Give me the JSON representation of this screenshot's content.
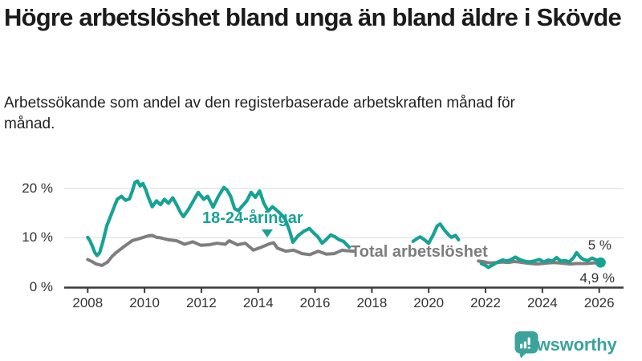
{
  "header": {
    "title": "Högre arbetslöshet bland unga än bland äldre i Skövde",
    "subtitle": "Arbetssökande som andel av den registerbaserade arbetskraften månad för månad."
  },
  "chart_data": {
    "type": "line",
    "title": "Högre arbetslöshet bland unga än bland äldre i Skövde",
    "xlabel": "",
    "ylabel": "",
    "grid": "horizontal",
    "x_axis": {
      "ticks": [
        2008,
        2010,
        2012,
        2014,
        2016,
        2018,
        2020,
        2022,
        2024,
        2026
      ],
      "min": 2007.2,
      "max": 2026.9
    },
    "y_axis": {
      "ticks": [
        {
          "v": 0,
          "label": "0 %"
        },
        {
          "v": 10,
          "label": "10 %"
        },
        {
          "v": 20,
          "label": "20 %"
        }
      ],
      "min": 0,
      "max": 23
    },
    "series": [
      {
        "name": "18-24-åringar",
        "color": "#17a295",
        "end_label": "5 %",
        "end_dot": true,
        "segments": [
          [
            [
              2008.0,
              10.1
            ],
            [
              2008.08,
              9.4
            ],
            [
              2008.17,
              8.2
            ],
            [
              2008.25,
              7.0
            ],
            [
              2008.33,
              6.4
            ],
            [
              2008.42,
              7.0
            ],
            [
              2008.52,
              8.9
            ],
            [
              2008.67,
              12.4
            ],
            [
              2008.8,
              14.3
            ],
            [
              2008.95,
              16.5
            ],
            [
              2009.04,
              17.8
            ],
            [
              2009.19,
              18.4
            ],
            [
              2009.33,
              17.6
            ],
            [
              2009.47,
              17.9
            ],
            [
              2009.56,
              19.3
            ],
            [
              2009.66,
              21.2
            ],
            [
              2009.75,
              21.5
            ],
            [
              2009.85,
              20.5
            ],
            [
              2009.94,
              21.0
            ],
            [
              2010.04,
              19.8
            ],
            [
              2010.13,
              18.3
            ],
            [
              2010.27,
              16.3
            ],
            [
              2010.42,
              17.5
            ],
            [
              2010.56,
              16.7
            ],
            [
              2010.7,
              17.8
            ],
            [
              2010.84,
              17.0
            ],
            [
              2010.99,
              18.1
            ],
            [
              2011.13,
              16.7
            ],
            [
              2011.27,
              15.1
            ],
            [
              2011.37,
              14.3
            ],
            [
              2011.55,
              15.8
            ],
            [
              2011.7,
              17.3
            ],
            [
              2011.89,
              19.2
            ],
            [
              2012.08,
              17.8
            ],
            [
              2012.22,
              18.4
            ],
            [
              2012.41,
              16.2
            ],
            [
              2012.6,
              18.4
            ],
            [
              2012.79,
              20.2
            ],
            [
              2012.9,
              19.7
            ],
            [
              2013.03,
              18.4
            ],
            [
              2013.17,
              15.9
            ],
            [
              2013.3,
              15.5
            ],
            [
              2013.45,
              16.5
            ],
            [
              2013.6,
              17.5
            ],
            [
              2013.75,
              19.2
            ],
            [
              2013.9,
              18.2
            ],
            [
              2014.05,
              19.5
            ],
            [
              2014.2,
              17.0
            ],
            [
              2014.35,
              15.4
            ],
            [
              2014.5,
              16.3
            ],
            [
              2014.65,
              15.6
            ],
            [
              2014.8,
              14.8
            ],
            [
              2014.95,
              13.8
            ],
            [
              2015.1,
              11.5
            ],
            [
              2015.22,
              9.1
            ],
            [
              2015.4,
              10.4
            ],
            [
              2015.6,
              11.3
            ],
            [
              2015.8,
              11.9
            ],
            [
              2015.95,
              11.0
            ],
            [
              2016.1,
              10.2
            ],
            [
              2016.25,
              8.9
            ],
            [
              2016.4,
              9.7
            ],
            [
              2016.55,
              10.6
            ],
            [
              2016.7,
              10.2
            ],
            [
              2016.85,
              9.6
            ],
            [
              2017.0,
              9.3
            ],
            [
              2017.1,
              8.7
            ],
            [
              2017.2,
              8.1
            ]
          ],
          [
            [
              2019.45,
              9.3
            ],
            [
              2019.6,
              9.9
            ],
            [
              2019.7,
              10.2
            ],
            [
              2019.85,
              9.6
            ],
            [
              2020.0,
              8.9
            ],
            [
              2020.15,
              10.5
            ],
            [
              2020.3,
              12.4
            ],
            [
              2020.4,
              12.8
            ],
            [
              2020.55,
              11.6
            ],
            [
              2020.7,
              10.6
            ],
            [
              2020.8,
              10.1
            ],
            [
              2020.94,
              10.5
            ],
            [
              2021.05,
              9.6
            ]
          ],
          [
            [
              2021.85,
              4.8
            ],
            [
              2022.0,
              4.4
            ],
            [
              2022.1,
              4.0
            ],
            [
              2022.25,
              4.5
            ],
            [
              2022.4,
              5.0
            ],
            [
              2022.6,
              5.5
            ],
            [
              2022.75,
              5.3
            ],
            [
              2022.9,
              5.6
            ],
            [
              2023.05,
              6.1
            ],
            [
              2023.2,
              5.6
            ],
            [
              2023.35,
              5.3
            ],
            [
              2023.55,
              5.1
            ],
            [
              2023.7,
              5.3
            ],
            [
              2023.9,
              5.6
            ],
            [
              2024.05,
              5.1
            ],
            [
              2024.2,
              5.5
            ],
            [
              2024.35,
              5.3
            ],
            [
              2024.5,
              6.0
            ],
            [
              2024.65,
              5.3
            ],
            [
              2024.8,
              5.4
            ],
            [
              2024.95,
              5.1
            ],
            [
              2025.1,
              6.0
            ],
            [
              2025.2,
              7.0
            ],
            [
              2025.35,
              6.0
            ],
            [
              2025.45,
              5.6
            ],
            [
              2025.6,
              5.4
            ],
            [
              2025.75,
              5.9
            ],
            [
              2025.9,
              5.5
            ],
            [
              2026.05,
              5.0
            ]
          ]
        ]
      },
      {
        "name": "Total arbetslöshet",
        "color": "#7e7e7e",
        "end_label": "4,9 %",
        "end_dot": false,
        "segments": [
          [
            [
              2008.0,
              5.6
            ],
            [
              2008.15,
              5.2
            ],
            [
              2008.3,
              4.7
            ],
            [
              2008.5,
              4.4
            ],
            [
              2008.7,
              5.1
            ],
            [
              2008.85,
              6.2
            ],
            [
              2009.0,
              7.0
            ],
            [
              2009.27,
              8.2
            ],
            [
              2009.56,
              9.4
            ],
            [
              2009.85,
              9.9
            ],
            [
              2010.13,
              10.4
            ],
            [
              2010.27,
              10.5
            ],
            [
              2010.42,
              10.1
            ],
            [
              2010.56,
              10.0
            ],
            [
              2010.84,
              9.6
            ],
            [
              2011.13,
              9.4
            ],
            [
              2011.41,
              8.7
            ],
            [
              2011.7,
              9.2
            ],
            [
              2011.98,
              8.5
            ],
            [
              2012.27,
              8.6
            ],
            [
              2012.55,
              8.9
            ],
            [
              2012.84,
              8.7
            ],
            [
              2012.98,
              9.4
            ],
            [
              2013.26,
              8.6
            ],
            [
              2013.55,
              8.9
            ],
            [
              2013.83,
              7.5
            ],
            [
              2014.11,
              8.1
            ],
            [
              2014.4,
              8.8
            ],
            [
              2014.54,
              9.0
            ],
            [
              2014.68,
              7.9
            ],
            [
              2014.97,
              7.3
            ],
            [
              2015.25,
              7.5
            ],
            [
              2015.54,
              6.8
            ],
            [
              2015.82,
              6.6
            ],
            [
              2016.11,
              7.3
            ],
            [
              2016.39,
              6.7
            ],
            [
              2016.68,
              6.8
            ],
            [
              2016.96,
              7.5
            ],
            [
              2017.1,
              7.4
            ],
            [
              2017.35,
              7.3
            ]
          ],
          [
            [
              2021.75,
              5.3
            ],
            [
              2021.9,
              5.2
            ],
            [
              2022.05,
              5.0
            ],
            [
              2022.2,
              4.9
            ],
            [
              2022.4,
              5.0
            ],
            [
              2022.6,
              5.1
            ],
            [
              2022.8,
              5.0
            ],
            [
              2023.0,
              5.2
            ],
            [
              2023.2,
              5.1
            ],
            [
              2023.4,
              4.9
            ],
            [
              2023.6,
              4.8
            ],
            [
              2023.8,
              4.7
            ],
            [
              2024.0,
              4.8
            ],
            [
              2024.2,
              4.9
            ],
            [
              2024.4,
              5.0
            ],
            [
              2024.6,
              4.9
            ],
            [
              2024.8,
              4.8
            ],
            [
              2025.0,
              4.7
            ],
            [
              2025.2,
              4.8
            ],
            [
              2025.4,
              4.8
            ],
            [
              2025.6,
              4.8
            ],
            [
              2025.8,
              4.9
            ],
            [
              2026.0,
              4.9
            ]
          ]
        ]
      }
    ]
  },
  "annotations": {
    "young_series_label": "18-24-åringar",
    "total_series_label": "Total arbetslöshet",
    "young_end_value": "5 %",
    "total_end_value": "4,9 %"
  },
  "branding": {
    "logo_text": "Newsworthy",
    "logo_icon": "bar-chart-speech-bubble-icon",
    "logo_color": "#3ba39c"
  },
  "colors": {
    "young_line": "#17a295",
    "total_line": "#7e7e7e",
    "axis": "#3a3a3a",
    "gridline": "#e3e3e3",
    "text": "#333333"
  }
}
